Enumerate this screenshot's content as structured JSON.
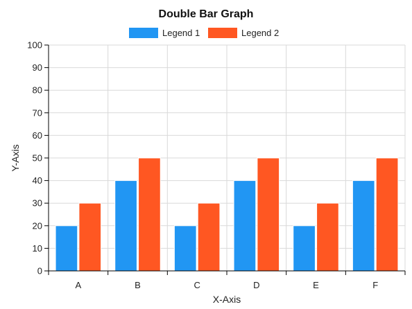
{
  "chart_data": {
    "type": "bar",
    "title": "Double Bar Graph",
    "xlabel": "X-Axis",
    "ylabel": "Y-Axis",
    "categories": [
      "A",
      "B",
      "C",
      "D",
      "E",
      "F"
    ],
    "series": [
      {
        "name": "Legend 1",
        "values": [
          20,
          40,
          20,
          40,
          20,
          40
        ],
        "color": "#2196F3"
      },
      {
        "name": "Legend 2",
        "values": [
          30,
          50,
          30,
          50,
          30,
          50
        ],
        "color": "#FF5722"
      }
    ],
    "ylim": [
      0,
      100
    ],
    "yticks": [
      0,
      10,
      20,
      30,
      40,
      50,
      60,
      70,
      80,
      90,
      100
    ],
    "grid": true,
    "legend_position": "top"
  }
}
